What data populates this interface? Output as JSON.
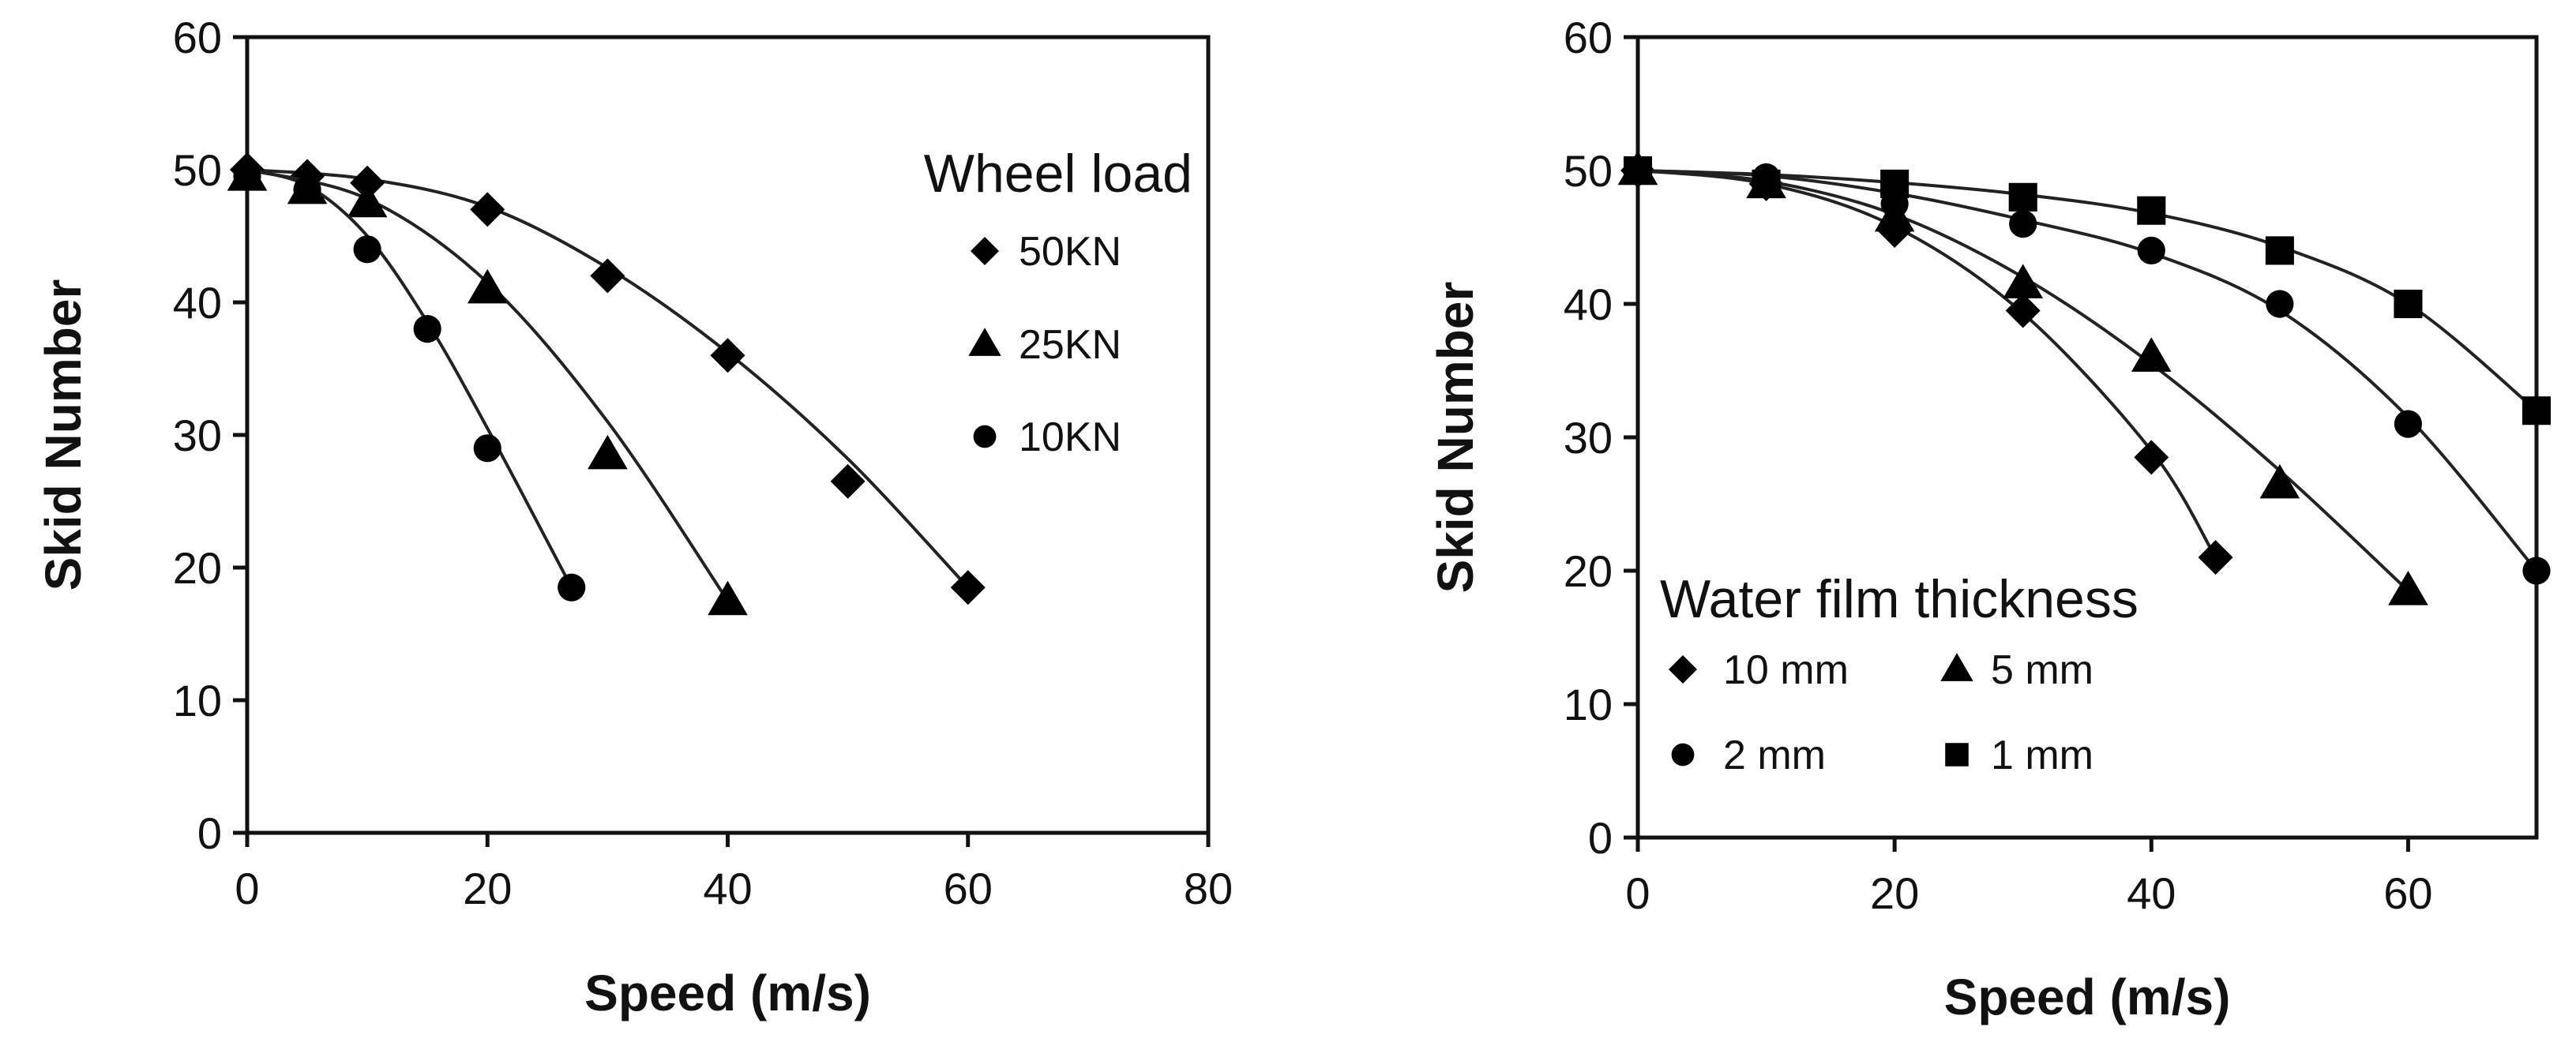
{
  "chart_data": [
    {
      "type": "scatter",
      "title": "",
      "xlabel": "Speed (m/s)",
      "ylabel": "Skid Number",
      "xlim": [
        0,
        80
      ],
      "ylim": [
        0,
        60
      ],
      "xticks": [
        0,
        20,
        40,
        60,
        80
      ],
      "yticks": [
        0,
        10,
        20,
        30,
        40,
        50,
        60
      ],
      "grid": false,
      "legend": {
        "title": "Wheel load",
        "placement": "top-right",
        "columns": 1
      },
      "series": [
        {
          "name": "50KN",
          "marker": "diamond",
          "points": [
            [
              0,
              50
            ],
            [
              5,
              49.5
            ],
            [
              10,
              49
            ],
            [
              20,
              47
            ],
            [
              30,
              42
            ],
            [
              40,
              36
            ],
            [
              50,
              26.5
            ],
            [
              60,
              18.5
            ]
          ],
          "fit": [
            [
              0,
              50
            ],
            [
              10,
              49.3
            ],
            [
              20,
              47.2
            ],
            [
              30,
              42.6
            ],
            [
              40,
              36.2
            ],
            [
              50,
              28.2
            ],
            [
              60,
              18.5
            ]
          ]
        },
        {
          "name": "25KN",
          "marker": "triangle",
          "points": [
            [
              0,
              49.5
            ],
            [
              5,
              48.5
            ],
            [
              10,
              47.5
            ],
            [
              20,
              41
            ],
            [
              30,
              28.5
            ],
            [
              40,
              17.5
            ]
          ],
          "fit": [
            [
              0,
              50
            ],
            [
              10,
              47.8
            ],
            [
              20,
              41.5
            ],
            [
              30,
              31
            ],
            [
              40,
              17.5
            ]
          ]
        },
        {
          "name": "10KN",
          "marker": "circle",
          "points": [
            [
              0,
              49.5
            ],
            [
              5,
              48.5
            ],
            [
              10,
              44
            ],
            [
              15,
              38
            ],
            [
              20,
              29
            ],
            [
              27,
              18.5
            ]
          ],
          "fit": [
            [
              0,
              50
            ],
            [
              5,
              48.8
            ],
            [
              10,
              45
            ],
            [
              15,
              38.5
            ],
            [
              20,
              30.5
            ],
            [
              27,
              18.5
            ]
          ]
        }
      ]
    },
    {
      "type": "scatter",
      "title": "",
      "xlabel": "Speed (m/s)",
      "ylabel": "Skid Number",
      "xlim": [
        0,
        70
      ],
      "ylim": [
        0,
        60
      ],
      "xticks": [
        0,
        20,
        40,
        60
      ],
      "yticks": [
        0,
        10,
        20,
        30,
        40,
        50,
        60
      ],
      "grid": false,
      "legend": {
        "title": "Water film thickness",
        "placement": "bottom-left",
        "columns": 2
      },
      "series": [
        {
          "name": "10 mm",
          "marker": "diamond",
          "points": [
            [
              0,
              50
            ],
            [
              10,
              49
            ],
            [
              20,
              45.5
            ],
            [
              30,
              39.5
            ],
            [
              40,
              28.5
            ],
            [
              45,
              21
            ]
          ],
          "fit": [
            [
              0,
              50
            ],
            [
              10,
              49
            ],
            [
              20,
              45.8
            ],
            [
              30,
              39.3
            ],
            [
              40,
              29
            ],
            [
              45,
              21
            ]
          ]
        },
        {
          "name": "5 mm",
          "marker": "triangle",
          "points": [
            [
              0,
              50
            ],
            [
              10,
              49
            ],
            [
              20,
              46.5
            ],
            [
              30,
              41.5
            ],
            [
              40,
              36
            ],
            [
              50,
              26.5
            ],
            [
              60,
              18.5
            ]
          ],
          "fit": [
            [
              0,
              50
            ],
            [
              10,
              49.2
            ],
            [
              20,
              46.7
            ],
            [
              30,
              42
            ],
            [
              40,
              35.5
            ],
            [
              50,
              27.5
            ],
            [
              60,
              18.5
            ]
          ]
        },
        {
          "name": "2 mm",
          "marker": "circle",
          "points": [
            [
              0,
              50
            ],
            [
              10,
              49.5
            ],
            [
              20,
              47.5
            ],
            [
              30,
              46
            ],
            [
              40,
              44
            ],
            [
              50,
              40
            ],
            [
              60,
              31
            ],
            [
              70,
              20
            ]
          ],
          "fit": [
            [
              0,
              50
            ],
            [
              10,
              49.6
            ],
            [
              20,
              48.3
            ],
            [
              30,
              46.3
            ],
            [
              40,
              43.8
            ],
            [
              50,
              39.5
            ],
            [
              60,
              31.5
            ],
            [
              70,
              20
            ]
          ]
        },
        {
          "name": "1 mm",
          "marker": "square",
          "points": [
            [
              0,
              50
            ],
            [
              10,
              49
            ],
            [
              20,
              49
            ],
            [
              30,
              48
            ],
            [
              40,
              47
            ],
            [
              50,
              44
            ],
            [
              60,
              40
            ],
            [
              70,
              32
            ]
          ],
          "fit": [
            [
              0,
              50
            ],
            [
              10,
              49.7
            ],
            [
              20,
              49.1
            ],
            [
              30,
              48.2
            ],
            [
              40,
              46.8
            ],
            [
              50,
              44.3
            ],
            [
              60,
              40
            ],
            [
              70,
              32
            ]
          ]
        }
      ]
    }
  ]
}
